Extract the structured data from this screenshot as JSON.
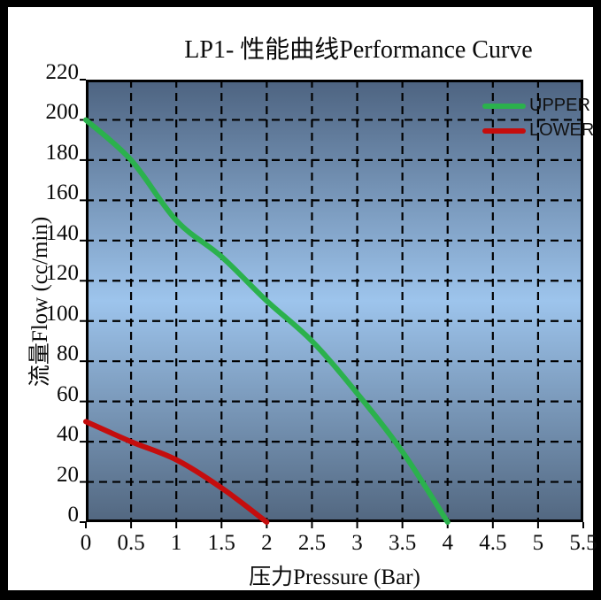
{
  "frame": {
    "background": "#000000",
    "panel_background": "#ffffff"
  },
  "chart_data": {
    "type": "line",
    "title": "LP1- 性能曲线Performance Curve",
    "xlabel": "压力Pressure (Bar)",
    "ylabel": "流量Flow (cc/min)",
    "xlim": [
      0,
      5.5
    ],
    "ylim": [
      0,
      220
    ],
    "x_ticks": [
      "0",
      "0.5",
      "1",
      "1.5",
      "2",
      "2.5",
      "3",
      "3.5",
      "4",
      "4.5",
      "5",
      "5.5"
    ],
    "y_ticks": [
      "0",
      "20",
      "40",
      "60",
      "80",
      "100",
      "120",
      "140",
      "160",
      "180",
      "200",
      "220"
    ],
    "grid": "dashed",
    "grid_color": "#000000",
    "axis_border_color": "#000000",
    "legend_position": "top-right-inside",
    "series": [
      {
        "name": "UPPER",
        "color": "#2bb14d",
        "points": [
          [
            0,
            200
          ],
          [
            0.5,
            180
          ],
          [
            1,
            150
          ],
          [
            1.5,
            132
          ],
          [
            2,
            110
          ],
          [
            2.5,
            90
          ],
          [
            3,
            64
          ],
          [
            3.5,
            35
          ],
          [
            4,
            0
          ]
        ]
      },
      {
        "name": "LOWER",
        "color": "#c50d0d",
        "points": [
          [
            0,
            50
          ],
          [
            0.5,
            40
          ],
          [
            1,
            31
          ],
          [
            1.5,
            17
          ],
          [
            2,
            0
          ]
        ]
      }
    ],
    "plot_background": {
      "type": "vertical-gradient",
      "stops": [
        {
          "offset": 0,
          "color": "#4d6380"
        },
        {
          "offset": 0.5,
          "color": "#9dc4ec"
        },
        {
          "offset": 1,
          "color": "#526780"
        }
      ]
    }
  }
}
